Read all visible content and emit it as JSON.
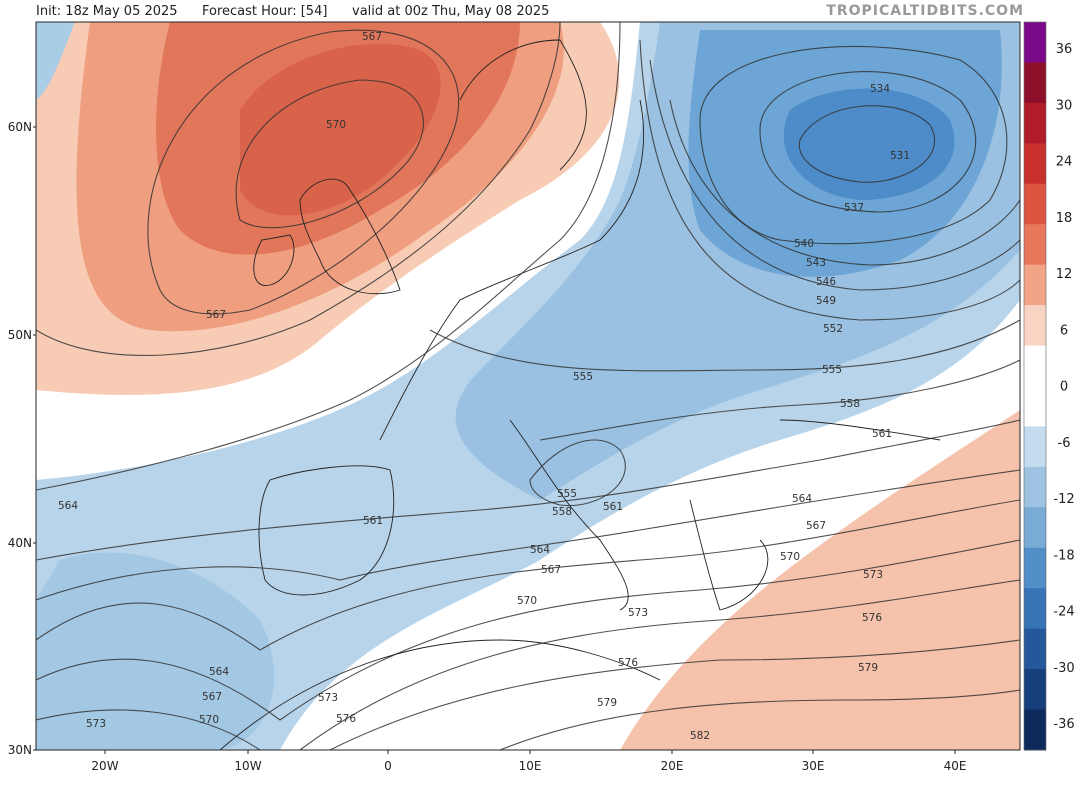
{
  "header": {
    "init": "Init: 18z May 05 2025",
    "forecast_hour": "Forecast Hour: [54]",
    "valid": "valid at 00z Thu, May 08 2025",
    "source": "TROPICALTIDBITS.COM"
  },
  "map": {
    "lat_labels": [
      "60N",
      "50N",
      "40N",
      "30N"
    ],
    "lon_labels": [
      "20W",
      "10W",
      "0",
      "10E",
      "20E",
      "30E",
      "40E"
    ],
    "contour_labels": [
      "567",
      "570",
      "567",
      "534",
      "531",
      "537",
      "540",
      "543",
      "546",
      "549",
      "552",
      "555",
      "555",
      "558",
      "561",
      "564",
      "561",
      "555",
      "558",
      "561",
      "564",
      "567",
      "564",
      "567",
      "570",
      "570",
      "573",
      "573",
      "576",
      "576",
      "579",
      "564",
      "567",
      "570",
      "573",
      "573",
      "576",
      "579",
      "582"
    ]
  },
  "colorbar": {
    "labels": [
      "36",
      "30",
      "24",
      "18",
      "12",
      "6",
      "0",
      "-6",
      "-12",
      "-18",
      "-24",
      "-30",
      "-36"
    ]
  }
}
